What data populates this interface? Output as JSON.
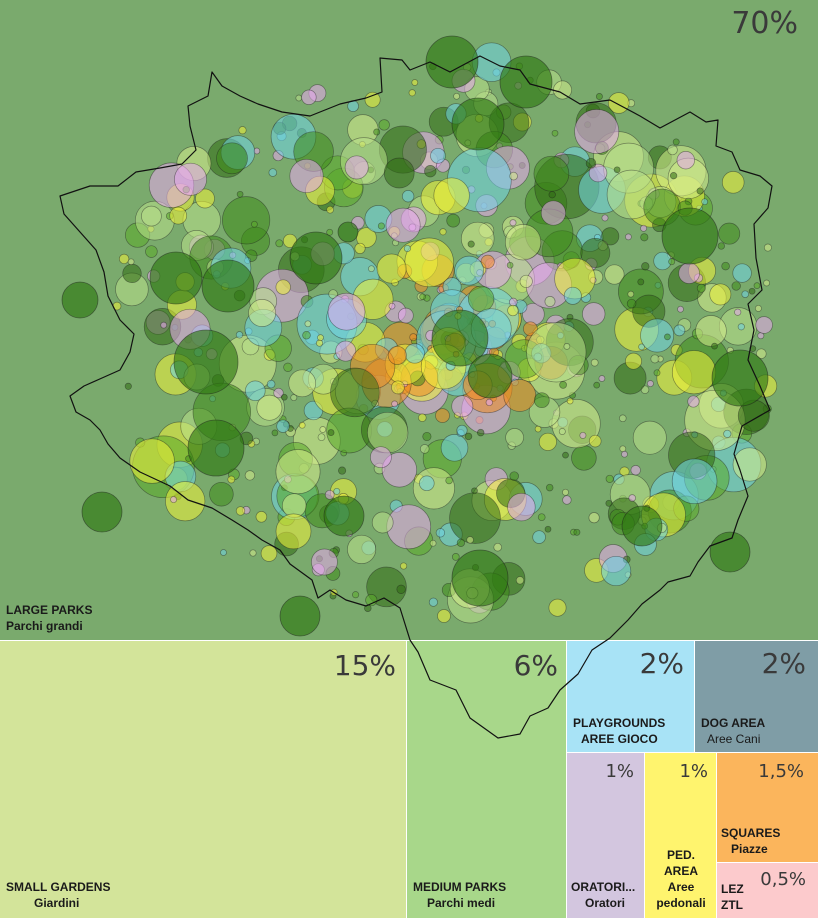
{
  "categories": [
    {
      "id": "large",
      "pct": "70%",
      "en": "LARGE PARKS",
      "it": "Parchi grandi",
      "color": "#7aaa6d"
    },
    {
      "id": "small",
      "pct": "15%",
      "en": "SMALL GARDENS",
      "it": "Giardini",
      "color": "#d3e49a"
    },
    {
      "id": "medium",
      "pct": "6%",
      "en": "MEDIUM PARKS",
      "it": "Parchi medi",
      "color": "#a8d78a"
    },
    {
      "id": "playgrounds",
      "pct": "2%",
      "en": "PLAYGROUNDS",
      "it": "AREE GIOCO",
      "color": "#a8e3f6"
    },
    {
      "id": "dog",
      "pct": "2%",
      "en": "DOG AREA",
      "it": "Aree Cani",
      "color": "#7f9da6"
    },
    {
      "id": "oratori",
      "pct": "1%",
      "en": "ORATORI...",
      "it": "Oratori",
      "color": "#d3c6df"
    },
    {
      "id": "ped",
      "pct": "1%",
      "en": "PED. AREA",
      "it": "Aree pedonali",
      "color": "#fff46e"
    },
    {
      "id": "squares",
      "pct": "1,5%",
      "en": "SQUARES",
      "it": "Piazze",
      "color": "#fbb55c"
    },
    {
      "id": "lez",
      "pct": "0,5%",
      "en": "LEZ",
      "it": "ZTL",
      "color": "#fccacc"
    }
  ]
}
